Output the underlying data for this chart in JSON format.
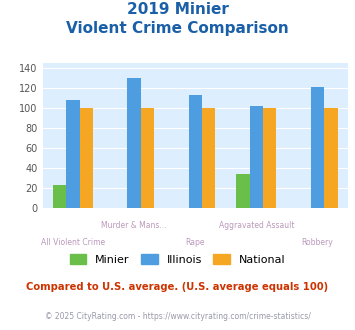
{
  "title_line1": "2019 Minier",
  "title_line2": "Violent Crime Comparison",
  "categories": [
    "All Violent Crime",
    "Murder & Mans...",
    "Rape",
    "Aggravated Assault",
    "Robbery"
  ],
  "minier_values": [
    23,
    0,
    0,
    34,
    0
  ],
  "illinois_values": [
    108,
    130,
    113,
    102,
    121
  ],
  "national_values": [
    100,
    100,
    100,
    100,
    100
  ],
  "minier_color": "#6abf4b",
  "illinois_color": "#4d9de0",
  "national_color": "#f5a623",
  "title_color": "#1a5fa8",
  "ylim": [
    0,
    145
  ],
  "yticks": [
    0,
    20,
    40,
    60,
    80,
    100,
    120,
    140
  ],
  "bg_color": "#ddeeff",
  "footer_text": "Compared to U.S. average. (U.S. average equals 100)",
  "copyright_text": "© 2025 CityRating.com - https://www.cityrating.com/crime-statistics/",
  "footer_color": "#cc3300",
  "copyright_color": "#9999aa",
  "xlabel_color": "#bb99bb",
  "bar_width": 0.22
}
